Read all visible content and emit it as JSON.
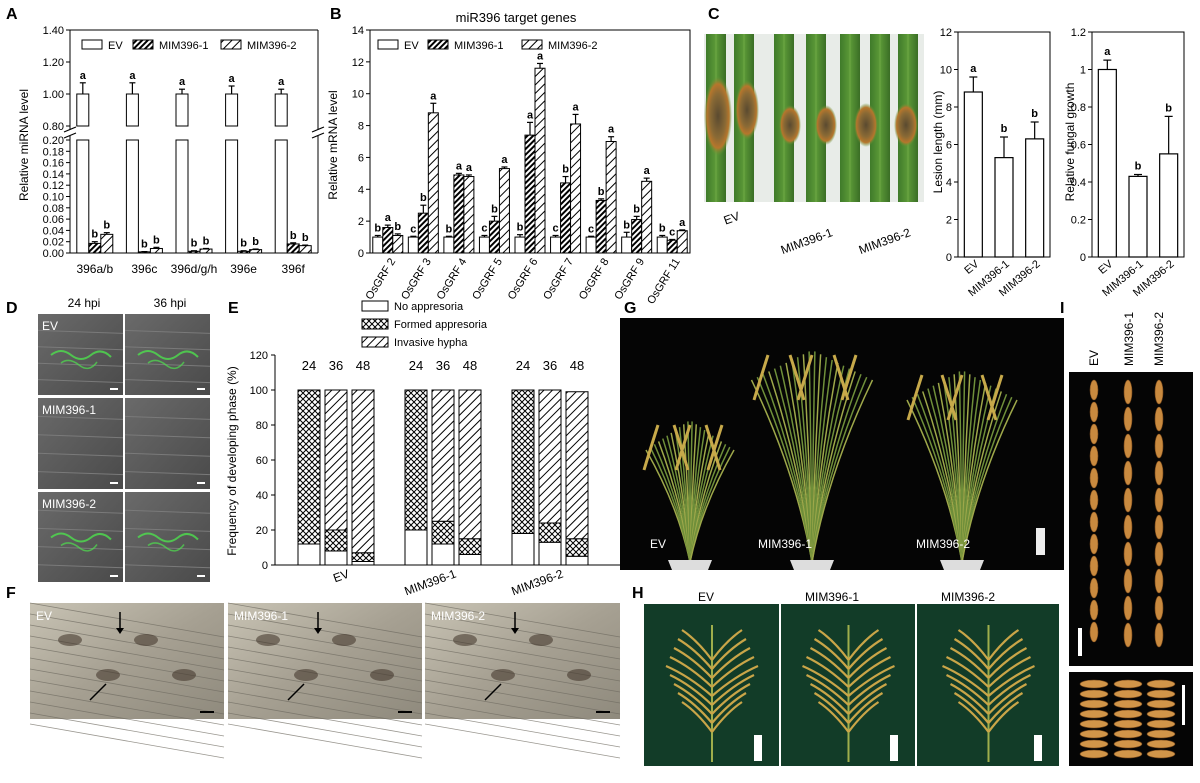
{
  "panels": {
    "A": "A",
    "B": "B",
    "C": "C",
    "D": "D",
    "E": "E",
    "F": "F",
    "G": "G",
    "H": "H",
    "I": "I"
  },
  "legend": {
    "ev": "EV",
    "mim1": "MIM396-1",
    "mim2": "MIM396-2"
  },
  "chart_data": [
    {
      "id": "A",
      "type": "bar",
      "ylabel": "Relative miRNA level",
      "categories": [
        "396a/b",
        "396c",
        "396d/g/h",
        "396e",
        "396f"
      ],
      "broken_axis": {
        "lower": [
          0,
          0.2
        ],
        "upper": [
          0.8,
          1.4
        ]
      },
      "lower_ticks": [
        "0.00",
        "0.02",
        "0.04",
        "0.06",
        "0.08",
        "0.10",
        "0.12",
        "0.14",
        "0.16",
        "0.18",
        "0.20"
      ],
      "upper_ticks": [
        "0.80",
        "1.00",
        "1.20",
        "1.40"
      ],
      "series": [
        {
          "name": "EV",
          "values": [
            1.0,
            1.0,
            1.0,
            1.0,
            1.0
          ],
          "errors": [
            0.07,
            0.07,
            0.03,
            0.05,
            0.03
          ],
          "letters": [
            "a",
            "a",
            "a",
            "a",
            "a"
          ]
        },
        {
          "name": "MIM396-1",
          "values": [
            0.017,
            0.002,
            0.003,
            0.003,
            0.016
          ],
          "errors": [
            0.003,
            0.0005,
            0.001,
            0.001,
            0.002
          ],
          "letters": [
            "b",
            "b",
            "b",
            "b",
            "b"
          ]
        },
        {
          "name": "MIM396-2",
          "values": [
            0.033,
            0.008,
            0.007,
            0.006,
            0.013
          ],
          "errors": [
            0.003,
            0.002,
            0.001,
            0.001,
            0.001
          ],
          "letters": [
            "b",
            "b",
            "b",
            "b",
            "b"
          ]
        }
      ]
    },
    {
      "id": "B",
      "type": "bar",
      "title": "miR396 target genes",
      "ylabel": "Relative mRNA level",
      "ylim": [
        0,
        14
      ],
      "yticks": [
        "0",
        "2",
        "4",
        "6",
        "8",
        "10",
        "12",
        "14"
      ],
      "categories": [
        "OsGRF 2",
        "OsGRF 3",
        "OsGRF 4",
        "OsGRF 5",
        "OsGRF 6",
        "OsGRF 7",
        "OsGRF 8",
        "OsGRF 9",
        "OsGRF 11"
      ],
      "series": [
        {
          "name": "EV",
          "values": [
            1,
            1,
            1,
            1,
            1,
            1,
            1,
            1,
            1
          ],
          "errors": [
            0.1,
            0.05,
            0.05,
            0.1,
            0.15,
            0.1,
            0.05,
            0.3,
            0.1
          ],
          "letters": [
            "b",
            "c",
            "b",
            "c",
            "b",
            "c",
            "c",
            "b",
            "b"
          ]
        },
        {
          "name": "MIM396-1",
          "values": [
            1.6,
            2.5,
            4.9,
            2.0,
            7.4,
            4.4,
            3.3,
            2.1,
            0.8
          ],
          "errors": [
            0.15,
            0.5,
            0.1,
            0.3,
            0.8,
            0.4,
            0.1,
            0.2,
            0.05
          ],
          "letters": [
            "a",
            "b",
            "a",
            "b",
            "a",
            "b",
            "b",
            "b",
            "c"
          ]
        },
        {
          "name": "MIM396-2",
          "values": [
            1.1,
            8.8,
            4.8,
            5.3,
            11.6,
            8.1,
            7.0,
            4.5,
            1.4
          ],
          "errors": [
            0.1,
            0.6,
            0.1,
            0.1,
            0.3,
            0.6,
            0.3,
            0.2,
            0.05
          ],
          "letters": [
            "b",
            "a",
            "a",
            "a",
            "a",
            "a",
            "a",
            "a",
            "a"
          ]
        }
      ]
    },
    {
      "id": "C-lesion",
      "type": "bar",
      "ylabel": "Lesion length (mm)",
      "ylim": [
        0,
        12
      ],
      "yticks": [
        "0",
        "2",
        "4",
        "6",
        "8",
        "10",
        "12"
      ],
      "categories": [
        "EV",
        "MIM396-1",
        "MIM396-2"
      ],
      "values": [
        8.8,
        5.3,
        6.3
      ],
      "errors": [
        0.8,
        1.1,
        0.9
      ],
      "letters": [
        "a",
        "b",
        "b"
      ]
    },
    {
      "id": "C-fungal",
      "type": "bar",
      "ylabel": "Relative fungal growth",
      "ylim": [
        0,
        1.2
      ],
      "yticks": [
        "0",
        "0.2",
        "0.4",
        "0.6",
        "0.8",
        "1",
        "1.2"
      ],
      "categories": [
        "EV",
        "MIM396-1",
        "MIM396-2"
      ],
      "values": [
        1.0,
        0.43,
        0.55
      ],
      "errors": [
        0.05,
        0.01,
        0.2
      ],
      "letters": [
        "a",
        "b",
        "b"
      ]
    },
    {
      "id": "E",
      "type": "bar",
      "ylabel": "Frequency of developing phase (%)",
      "ylim": [
        0,
        120
      ],
      "yticks": [
        "0",
        "20",
        "40",
        "60",
        "80",
        "100",
        "120"
      ],
      "groups": [
        "EV",
        "MIM396-1",
        "MIM396-2"
      ],
      "timepoints": [
        "24",
        "36",
        "48"
      ],
      "legend": [
        "No appresoria",
        "Formed appresoria",
        "Invasive hypha"
      ],
      "stacks": [
        [
          [
            12,
            88,
            0
          ],
          [
            8,
            12,
            80
          ],
          [
            2,
            5,
            93
          ]
        ],
        [
          [
            20,
            80,
            0
          ],
          [
            12,
            13,
            75
          ],
          [
            6,
            9,
            85
          ]
        ],
        [
          [
            18,
            82,
            0
          ],
          [
            13,
            11,
            76
          ],
          [
            5,
            10,
            84
          ]
        ]
      ]
    }
  ],
  "photos": {
    "C_labels": [
      "EV",
      "MIM396-1",
      "MIM396-2"
    ],
    "D_cols": [
      "24 hpi",
      "36 hpi"
    ],
    "D_rows": [
      "EV",
      "MIM396-1",
      "MIM396-2"
    ],
    "F_labels": [
      "EV",
      "MIM396-1",
      "MIM396-2"
    ],
    "G_labels": [
      "EV",
      "MIM396-1",
      "MIM396-2"
    ],
    "H_labels": [
      "EV",
      "MIM396-1",
      "MIM396-2"
    ],
    "I_labels": [
      "EV",
      "MIM396-1",
      "MIM396-2"
    ]
  }
}
